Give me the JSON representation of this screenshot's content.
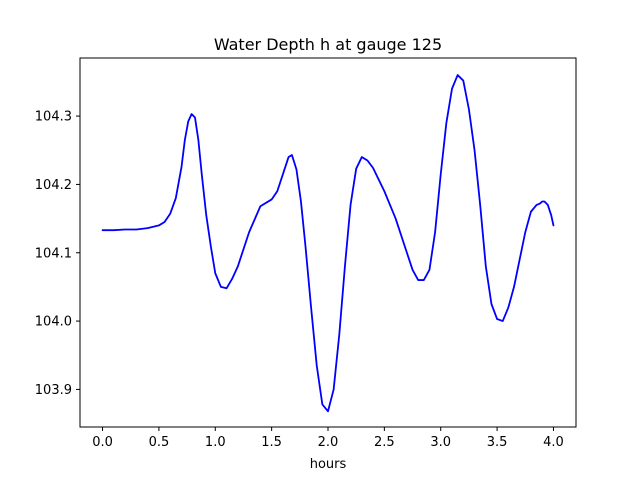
{
  "chart_data": {
    "type": "line",
    "title": "Water Depth h at gauge 125",
    "xlabel": "hours",
    "ylabel": "",
    "xlim": [
      -0.2,
      4.2
    ],
    "ylim": [
      103.845,
      104.385
    ],
    "xticks": [
      0.0,
      0.5,
      1.0,
      1.5,
      2.0,
      2.5,
      3.0,
      3.5,
      4.0
    ],
    "xtick_labels": [
      "0.0",
      "0.5",
      "1.0",
      "1.5",
      "2.0",
      "2.5",
      "3.0",
      "3.5",
      "4.0"
    ],
    "yticks": [
      103.9,
      104.0,
      104.1,
      104.2,
      104.3
    ],
    "ytick_labels": [
      "103.9",
      "104.0",
      "104.1",
      "104.2",
      "104.3"
    ],
    "grid": false,
    "legend": "none",
    "series": [
      {
        "color": "#0000ff",
        "x": [
          0.0,
          0.1,
          0.2,
          0.3,
          0.4,
          0.5,
          0.55,
          0.6,
          0.65,
          0.7,
          0.73,
          0.76,
          0.79,
          0.82,
          0.85,
          0.88,
          0.92,
          0.96,
          1.0,
          1.05,
          1.1,
          1.15,
          1.2,
          1.3,
          1.4,
          1.5,
          1.55,
          1.6,
          1.65,
          1.68,
          1.72,
          1.76,
          1.8,
          1.85,
          1.9,
          1.95,
          2.0,
          2.05,
          2.1,
          2.15,
          2.2,
          2.25,
          2.3,
          2.35,
          2.4,
          2.5,
          2.6,
          2.7,
          2.75,
          2.8,
          2.85,
          2.9,
          2.95,
          3.0,
          3.05,
          3.1,
          3.15,
          3.2,
          3.25,
          3.3,
          3.35,
          3.4,
          3.45,
          3.5,
          3.55,
          3.6,
          3.65,
          3.7,
          3.75,
          3.8,
          3.85,
          3.88,
          3.9,
          3.92,
          3.95,
          3.98,
          4.0
        ],
        "y": [
          104.133,
          104.133,
          104.134,
          104.134,
          104.136,
          104.14,
          104.145,
          104.157,
          104.18,
          104.225,
          104.265,
          104.292,
          104.303,
          104.298,
          104.265,
          104.215,
          104.155,
          104.11,
          104.07,
          104.05,
          104.048,
          104.062,
          104.08,
          104.13,
          104.168,
          104.178,
          104.19,
          104.215,
          104.24,
          104.243,
          104.222,
          104.175,
          104.11,
          104.02,
          103.935,
          103.878,
          103.868,
          103.9,
          103.98,
          104.08,
          104.17,
          104.223,
          104.24,
          104.235,
          104.224,
          104.19,
          104.15,
          104.1,
          104.075,
          104.06,
          104.06,
          104.075,
          104.13,
          104.215,
          104.29,
          104.34,
          104.36,
          104.352,
          104.31,
          104.25,
          104.17,
          104.08,
          104.025,
          104.003,
          104.0,
          104.02,
          104.05,
          104.09,
          104.13,
          104.16,
          104.17,
          104.172,
          104.175,
          104.175,
          104.17,
          104.155,
          104.14
        ]
      }
    ]
  }
}
